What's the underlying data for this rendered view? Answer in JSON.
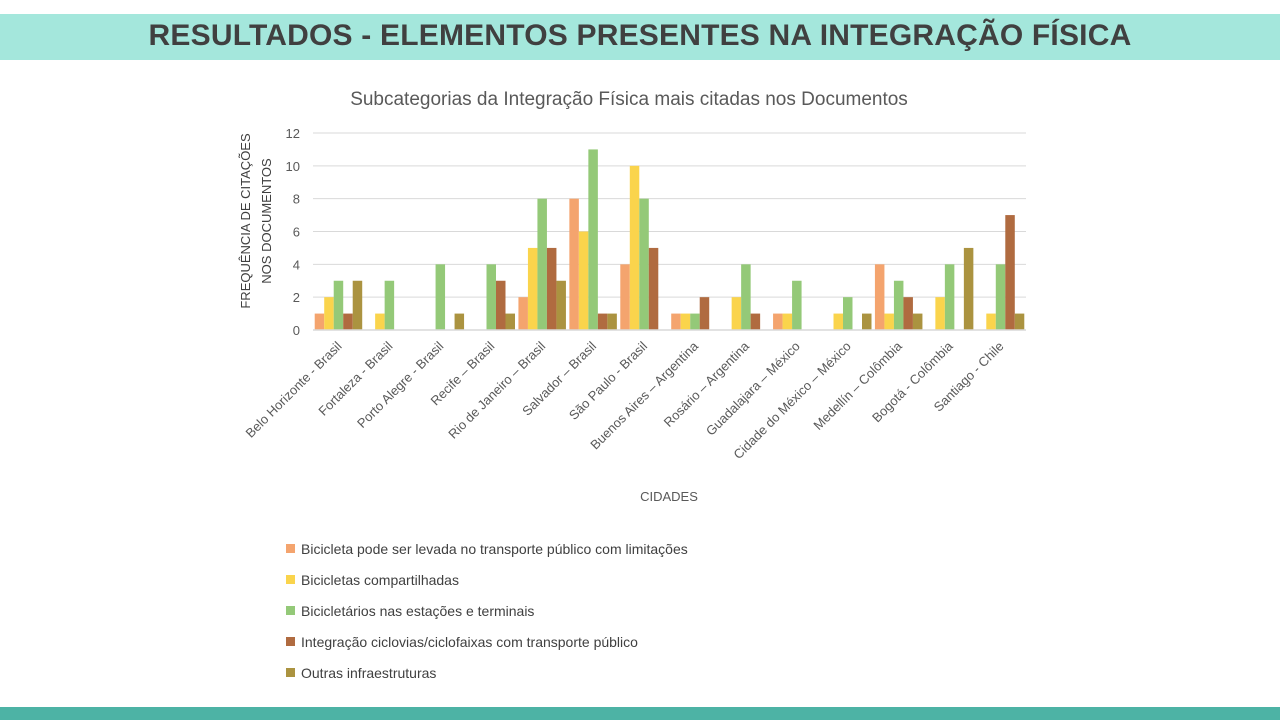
{
  "header": {
    "title": "RESULTADOS - ELEMENTOS PRESENTES NA INTEGRAÇÃO FÍSICA"
  },
  "chart_data": {
    "type": "bar",
    "title": "Subcategorias da Integração Física mais citadas nos Documentos",
    "xlabel": "CIDADES",
    "ylabel": [
      "FREQUÊNCIA DE CITAÇÕES",
      "NOS DOCUMENTOS"
    ],
    "ylim": [
      0,
      12
    ],
    "yticks": [
      0,
      2,
      4,
      6,
      8,
      10,
      12
    ],
    "grid": true,
    "legend_position": "bottom",
    "categories": [
      "Belo Horizonte - Brasil",
      "Fortaleza - Brasil",
      "Porto Alegre - Brasil",
      "Recife – Brasil",
      "Rio de Janeiro – Brasil",
      "Salvador – Brasil",
      "São Paulo - Brasil",
      "Buenos Aires – Argentina",
      "Rosário – Argentina",
      "Guadalajara – México",
      "Cidade do México – México",
      "Medellín – Colômbia",
      "Bogotá - Colômbia",
      "Santiago - Chile"
    ],
    "series": [
      {
        "name": "Bicicleta pode ser levada no transporte público com limitações",
        "color": "#f4a46e",
        "values": [
          1,
          0,
          0,
          0,
          2,
          8,
          4,
          1,
          0,
          1,
          0,
          4,
          0,
          0
        ]
      },
      {
        "name": "Bicicletas compartilhadas",
        "color": "#fad44c",
        "values": [
          2,
          1,
          0,
          0,
          5,
          6,
          10,
          1,
          2,
          1,
          1,
          1,
          2,
          1
        ]
      },
      {
        "name": "Bicicletários nas estações e terminais",
        "color": "#94c978",
        "values": [
          3,
          3,
          4,
          4,
          8,
          11,
          8,
          1,
          4,
          3,
          2,
          3,
          4,
          4
        ]
      },
      {
        "name": "Integração ciclovias/ciclofaixas com transporte público",
        "color": "#b06b40",
        "values": [
          1,
          0,
          0,
          3,
          5,
          1,
          5,
          2,
          1,
          0,
          0,
          2,
          0,
          7
        ]
      },
      {
        "name": "Outras infraestruturas",
        "color": "#ab9340",
        "values": [
          3,
          0,
          1,
          1,
          3,
          1,
          0,
          0,
          0,
          0,
          1,
          1,
          5,
          1
        ]
      }
    ]
  }
}
